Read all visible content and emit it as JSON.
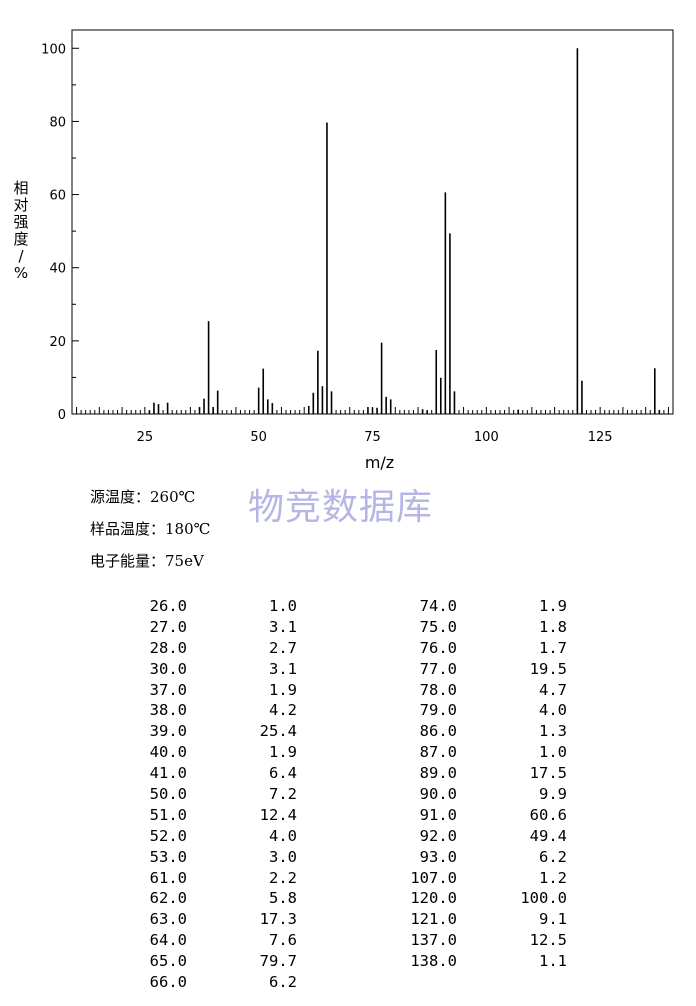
{
  "chart_data": {
    "type": "bar",
    "xlabel": "m/z",
    "ylabel": "相对强度/%",
    "xlim": [
      9,
      141
    ],
    "ylim": [
      0,
      105
    ],
    "x_ticks": [
      25,
      50,
      75,
      100,
      125
    ],
    "y_ticks": [
      0,
      20,
      40,
      60,
      80,
      100
    ],
    "grid": false,
    "peaks": [
      [
        26,
        1.0
      ],
      [
        27,
        3.1
      ],
      [
        28,
        2.7
      ],
      [
        30,
        3.1
      ],
      [
        37,
        1.9
      ],
      [
        38,
        4.2
      ],
      [
        39,
        25.4
      ],
      [
        40,
        1.9
      ],
      [
        41,
        6.4
      ],
      [
        50,
        7.2
      ],
      [
        51,
        12.4
      ],
      [
        52,
        4.0
      ],
      [
        53,
        3.0
      ],
      [
        61,
        2.2
      ],
      [
        62,
        5.8
      ],
      [
        63,
        17.3
      ],
      [
        64,
        7.6
      ],
      [
        65,
        79.7
      ],
      [
        66,
        6.2
      ],
      [
        74,
        1.9
      ],
      [
        75,
        1.8
      ],
      [
        76,
        1.7
      ],
      [
        77,
        19.5
      ],
      [
        78,
        4.7
      ],
      [
        79,
        4.0
      ],
      [
        86,
        1.3
      ],
      [
        87,
        1.0
      ],
      [
        89,
        17.5
      ],
      [
        90,
        9.9
      ],
      [
        91,
        60.6
      ],
      [
        92,
        49.4
      ],
      [
        93,
        6.2
      ],
      [
        107,
        1.2
      ],
      [
        120,
        100.0
      ],
      [
        121,
        9.1
      ],
      [
        137,
        12.5
      ],
      [
        138,
        1.1
      ]
    ]
  },
  "info": {
    "source_temp": "源温度：260℃",
    "sample_temp": "样品温度：180℃",
    "electron_energy": "电子能量：75eV"
  },
  "watermark": "物竞数据库",
  "table_left": [
    [
      "26.0",
      "1.0"
    ],
    [
      "27.0",
      "3.1"
    ],
    [
      "28.0",
      "2.7"
    ],
    [
      "30.0",
      "3.1"
    ],
    [
      "37.0",
      "1.9"
    ],
    [
      "38.0",
      "4.2"
    ],
    [
      "39.0",
      "25.4"
    ],
    [
      "40.0",
      "1.9"
    ],
    [
      "41.0",
      "6.4"
    ],
    [
      "50.0",
      "7.2"
    ],
    [
      "51.0",
      "12.4"
    ],
    [
      "52.0",
      "4.0"
    ],
    [
      "53.0",
      "3.0"
    ],
    [
      "61.0",
      "2.2"
    ],
    [
      "62.0",
      "5.8"
    ],
    [
      "63.0",
      "17.3"
    ],
    [
      "64.0",
      "7.6"
    ],
    [
      "65.0",
      "79.7"
    ],
    [
      "66.0",
      "6.2"
    ]
  ],
  "table_right": [
    [
      "74.0",
      "1.9"
    ],
    [
      "75.0",
      "1.8"
    ],
    [
      "76.0",
      "1.7"
    ],
    [
      "77.0",
      "19.5"
    ],
    [
      "78.0",
      "4.7"
    ],
    [
      "79.0",
      "4.0"
    ],
    [
      "86.0",
      "1.3"
    ],
    [
      "87.0",
      "1.0"
    ],
    [
      "89.0",
      "17.5"
    ],
    [
      "90.0",
      "9.9"
    ],
    [
      "91.0",
      "60.6"
    ],
    [
      "92.0",
      "49.4"
    ],
    [
      "93.0",
      "6.2"
    ],
    [
      "107.0",
      "1.2"
    ],
    [
      "120.0",
      "100.0"
    ],
    [
      "121.0",
      "9.1"
    ],
    [
      "137.0",
      "12.5"
    ],
    [
      "138.0",
      "1.1"
    ]
  ]
}
